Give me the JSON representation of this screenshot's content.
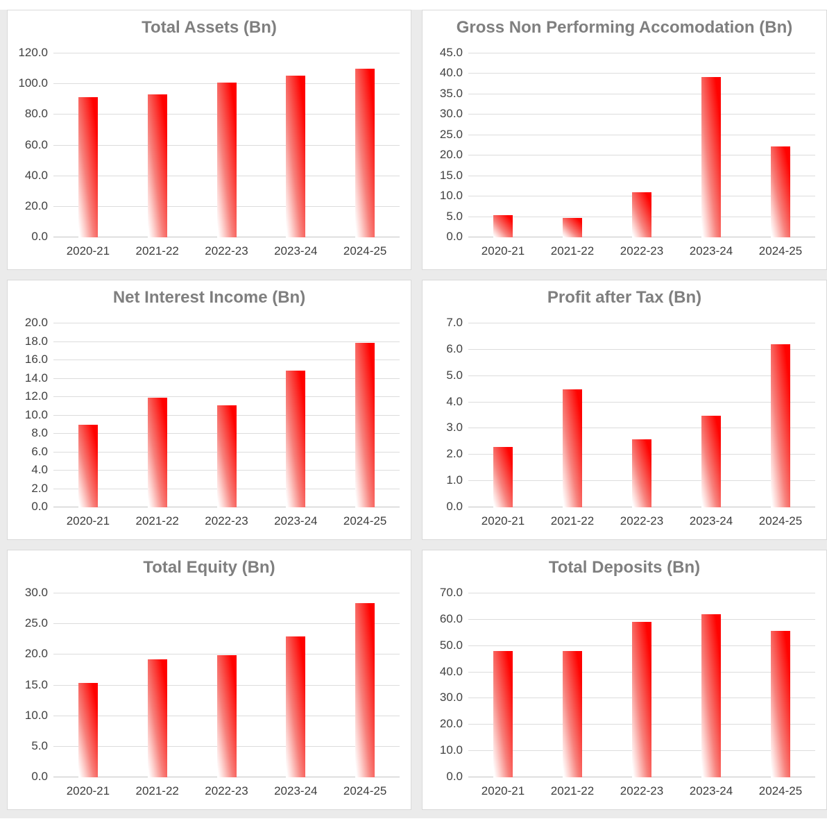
{
  "page": {
    "background_color": "#ffffff",
    "gutter_color": "#ebebeb",
    "layout": {
      "columns": 2,
      "rows": 3
    }
  },
  "styles": {
    "panel_background": "#ffffff",
    "panel_border_color": "#d9d9d9",
    "title_color": "#7f7f7f",
    "tick_label_color": "#404040",
    "gridline_color": "#dcdcdc",
    "axis_line_color": "#c3c3c3",
    "bar_gradient_top": "#ff0000",
    "bar_gradient_bottom": "#ffffff"
  },
  "chart_data": [
    {
      "type": "bar",
      "title": "Total Assets (Bn)",
      "categories": [
        "2020-21",
        "2021-22",
        "2022-23",
        "2023-24",
        "2024-25"
      ],
      "values": [
        91.5,
        93.5,
        100.8,
        105.5,
        110.0
      ],
      "ylim": [
        0,
        120
      ],
      "ytick_step": 20,
      "ytick_labels": [
        "0.0",
        "20.0",
        "40.0",
        "60.0",
        "80.0",
        "100.0",
        "120.0"
      ],
      "xlabel": "",
      "ylabel": "",
      "grid": true,
      "legend": "none",
      "bar_fill": "red-to-white-diagonal-gradient"
    },
    {
      "type": "bar",
      "title": "Gross Non Performing Accomodation (Bn)",
      "categories": [
        "2020-21",
        "2021-22",
        "2022-23",
        "2023-24",
        "2024-25"
      ],
      "values": [
        5.5,
        4.7,
        11.0,
        39.3,
        22.2
      ],
      "ylim": [
        0,
        45
      ],
      "ytick_step": 5,
      "ytick_labels": [
        "0.0",
        "5.0",
        "10.0",
        "15.0",
        "20.0",
        "25.0",
        "30.0",
        "35.0",
        "40.0",
        "45.0"
      ],
      "xlabel": "",
      "ylabel": "",
      "grid": true,
      "legend": "none",
      "bar_fill": "red-to-white-diagonal-gradient"
    },
    {
      "type": "bar",
      "title": "Net Interest Income (Bn)",
      "categories": [
        "2020-21",
        "2021-22",
        "2022-23",
        "2023-24",
        "2024-25"
      ],
      "values": [
        9.0,
        11.9,
        11.1,
        14.9,
        17.9
      ],
      "ylim": [
        0,
        20
      ],
      "ytick_step": 2,
      "ytick_labels": [
        "0.0",
        "2.0",
        "4.0",
        "6.0",
        "8.0",
        "10.0",
        "12.0",
        "14.0",
        "16.0",
        "18.0",
        "20.0"
      ],
      "xlabel": "",
      "ylabel": "",
      "grid": true,
      "legend": "none",
      "bar_fill": "red-to-white-diagonal-gradient"
    },
    {
      "type": "bar",
      "title": "Profit after Tax (Bn)",
      "categories": [
        "2020-21",
        "2021-22",
        "2022-23",
        "2023-24",
        "2024-25"
      ],
      "values": [
        2.3,
        4.5,
        2.6,
        3.5,
        6.2
      ],
      "ylim": [
        0,
        7
      ],
      "ytick_step": 1,
      "ytick_labels": [
        "0.0",
        "1.0",
        "2.0",
        "3.0",
        "4.0",
        "5.0",
        "6.0",
        "7.0"
      ],
      "xlabel": "",
      "ylabel": "",
      "grid": true,
      "legend": "none",
      "bar_fill": "red-to-white-diagonal-gradient"
    },
    {
      "type": "bar",
      "title": "Total Equity (Bn)",
      "categories": [
        "2020-21",
        "2021-22",
        "2022-23",
        "2023-24",
        "2024-25"
      ],
      "values": [
        15.4,
        19.3,
        19.9,
        23.0,
        28.4
      ],
      "ylim": [
        0,
        30
      ],
      "ytick_step": 5,
      "ytick_labels": [
        "0.0",
        "5.0",
        "10.0",
        "15.0",
        "20.0",
        "25.0",
        "30.0"
      ],
      "xlabel": "",
      "ylabel": "",
      "grid": true,
      "legend": "none",
      "bar_fill": "red-to-white-diagonal-gradient"
    },
    {
      "type": "bar",
      "title": "Total Deposits (Bn)",
      "categories": [
        "2020-21",
        "2021-22",
        "2022-23",
        "2023-24",
        "2024-25"
      ],
      "values": [
        48.0,
        48.0,
        59.2,
        62.0,
        55.7
      ],
      "ylim": [
        0,
        70
      ],
      "ytick_step": 10,
      "ytick_labels": [
        "0.0",
        "10.0",
        "20.0",
        "30.0",
        "40.0",
        "50.0",
        "60.0",
        "70.0"
      ],
      "xlabel": "",
      "ylabel": "",
      "grid": true,
      "legend": "none",
      "bar_fill": "red-to-white-diagonal-gradient"
    }
  ]
}
